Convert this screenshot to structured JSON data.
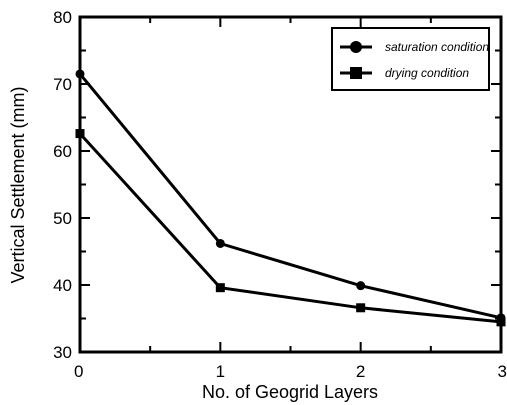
{
  "chart_data": {
    "type": "line",
    "xlabel": "No. of Geogrid Layers",
    "ylabel": "Vertical Settlement (mm)",
    "xlim": [
      0,
      3
    ],
    "ylim": [
      30,
      80
    ],
    "x_ticks": [
      0,
      1,
      2,
      3
    ],
    "y_ticks": [
      30,
      40,
      50,
      60,
      70,
      80
    ],
    "x_tick_labels": [
      "0",
      "1",
      "2",
      "3"
    ],
    "y_tick_labels": [
      "30",
      "40",
      "50",
      "60",
      "70",
      "80"
    ],
    "grid": false,
    "legend_position": "top-right",
    "x": [
      0,
      1,
      2,
      3
    ],
    "series": [
      {
        "name": "saturation condition",
        "marker": "circle",
        "color": "#000000",
        "values": [
          71.5,
          46.2,
          39.9,
          35.1
        ]
      },
      {
        "name": "drying condition",
        "marker": "square",
        "color": "#000000",
        "values": [
          62.6,
          39.6,
          36.6,
          34.5
        ]
      }
    ]
  }
}
